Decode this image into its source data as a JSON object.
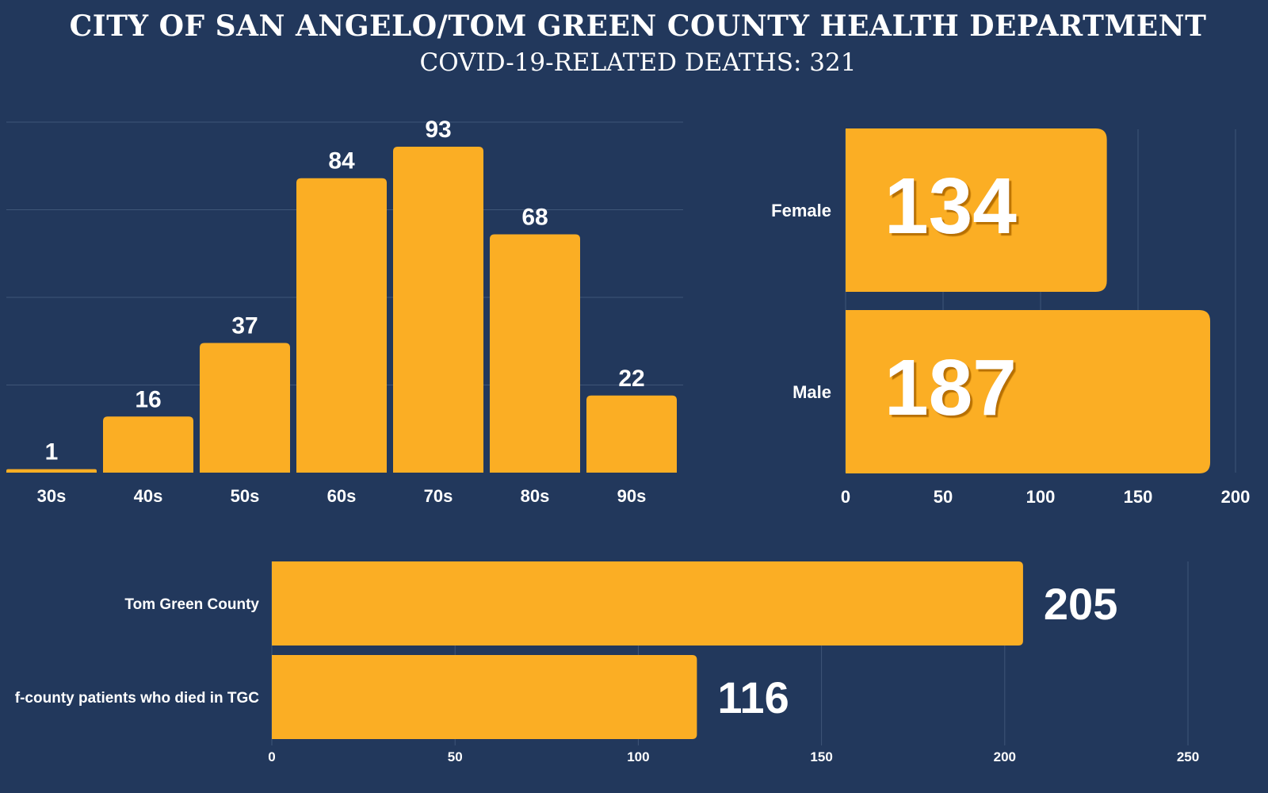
{
  "header": {
    "title": "CITY OF SAN ANGELO/TOM GREEN COUNTY HEALTH DEPARTMENT",
    "subtitle": "COVID-19-RELATED DEATHS: 321"
  },
  "colors": {
    "background": "#22385c",
    "bar": "#fbae24",
    "grid": "#3f5678",
    "text": "#ffffff"
  },
  "chart_data": [
    {
      "type": "bar",
      "categories": [
        "30s",
        "40s",
        "50s",
        "60s",
        "70s",
        "80s",
        "90s"
      ],
      "values": [
        1,
        16,
        37,
        84,
        93,
        68,
        22
      ],
      "ylim": [
        0,
        100
      ],
      "grid": true,
      "data_labels": true
    },
    {
      "type": "bar",
      "orientation": "horizontal",
      "categories": [
        "Female",
        "Male"
      ],
      "values": [
        134,
        187
      ],
      "xlim": [
        0,
        200
      ],
      "xticks": [
        "0",
        "50",
        "100",
        "150",
        "200"
      ],
      "grid": true,
      "data_labels": true
    },
    {
      "type": "bar",
      "orientation": "horizontal",
      "categories": [
        "Tom Green County",
        "f-county patients who died in TGC"
      ],
      "values": [
        205,
        116
      ],
      "xlim": [
        0,
        250
      ],
      "xticks": [
        "0",
        "50",
        "100",
        "150",
        "200",
        "250"
      ],
      "grid": true,
      "data_labels": true
    }
  ]
}
